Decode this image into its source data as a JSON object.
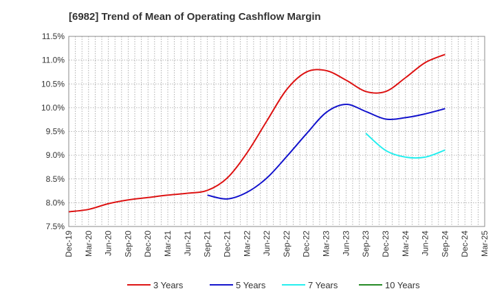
{
  "chart_data": {
    "type": "line",
    "title": "[6982]  Trend of Mean of Operating Cashflow Margin",
    "xlabel": "",
    "ylabel": "",
    "grid": true,
    "legend_position": "bottom",
    "x_ticks": [
      "Dec-19",
      "Mar-20",
      "Jun-20",
      "Sep-20",
      "Dec-20",
      "Mar-21",
      "Jun-21",
      "Sep-21",
      "Dec-21",
      "Mar-22",
      "Jun-22",
      "Sep-22",
      "Dec-22",
      "Mar-23",
      "Jun-23",
      "Sep-23",
      "Dec-23",
      "Mar-24",
      "Jun-24",
      "Sep-24",
      "Dec-24",
      "Mar-25"
    ],
    "y_ticks": [
      "7.5%",
      "8.0%",
      "8.5%",
      "9.0%",
      "9.5%",
      "10.0%",
      "10.5%",
      "11.0%",
      "11.5%"
    ],
    "ylim": [
      7.5,
      11.5
    ],
    "y_unit": "%",
    "series": [
      {
        "name": "3 Years",
        "color": "#dd1111",
        "x": [
          "Dec-19",
          "Mar-20",
          "Jun-20",
          "Sep-20",
          "Dec-20",
          "Mar-21",
          "Jun-21",
          "Sep-21",
          "Dec-21",
          "Mar-22",
          "Jun-22",
          "Sep-22",
          "Dec-22",
          "Mar-23",
          "Jun-23",
          "Sep-23",
          "Dec-23",
          "Mar-24",
          "Jun-24",
          "Sep-24"
        ],
        "values": [
          7.81,
          7.86,
          7.98,
          8.06,
          8.11,
          8.16,
          8.2,
          8.26,
          8.52,
          9.05,
          9.72,
          10.38,
          10.75,
          10.78,
          10.58,
          10.34,
          10.34,
          10.63,
          10.95,
          11.12
        ]
      },
      {
        "name": "5 Years",
        "color": "#1111cc",
        "x": [
          "Sep-21",
          "Dec-21",
          "Mar-22",
          "Jun-22",
          "Sep-22",
          "Dec-22",
          "Mar-23",
          "Jun-23",
          "Sep-23",
          "Dec-23",
          "Mar-24",
          "Jun-24",
          "Sep-24"
        ],
        "values": [
          8.16,
          8.08,
          8.22,
          8.52,
          8.97,
          9.45,
          9.9,
          10.07,
          9.92,
          9.76,
          9.79,
          9.87,
          9.98
        ]
      },
      {
        "name": "7 Years",
        "color": "#22eeee",
        "x": [
          "Sep-23",
          "Dec-23",
          "Mar-24",
          "Jun-24",
          "Sep-24"
        ],
        "values": [
          9.46,
          9.1,
          8.96,
          8.96,
          9.11
        ]
      },
      {
        "name": "10 Years",
        "color": "#228822",
        "x": [],
        "values": []
      }
    ]
  }
}
